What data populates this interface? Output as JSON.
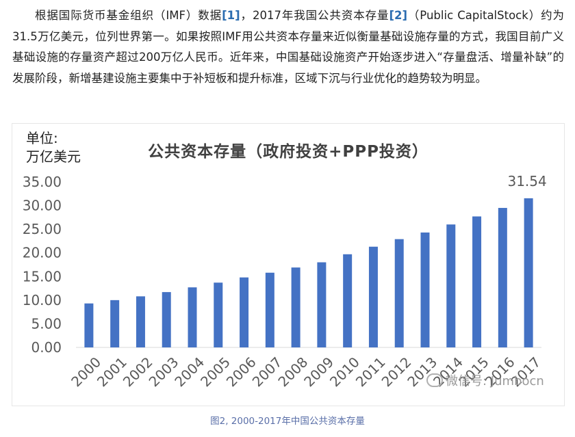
{
  "article": {
    "segments": [
      {
        "text": "根据国际货币基金组织（IMF）数据",
        "ref": false
      },
      {
        "text": "[1]",
        "ref": true
      },
      {
        "text": "，2017年我国公共资本存量",
        "ref": false
      },
      {
        "text": "[2]",
        "ref": true
      },
      {
        "text": "（Public CapitalStock）约为31.5万亿美元，位列世界第一。如果按照IMF用公共资本存量来近似衡量基础设施存量的方式，我国目前广义基础设施的存量资产超过200万亿人民币。近年来，中国基础设施资产开始逐步进入“存量盘活、增量补缺”的发展阶段，新增基建设施主要集中于补短板和提升标准，区域下沉与行业优化的趋势较为明显。",
        "ref": false
      }
    ]
  },
  "watermark": "微信号: Jumbocn",
  "caption": "图2,  2000-2017年中国公共资本存量",
  "colors": {
    "bar": "#4472c4",
    "axis_text": "#595959",
    "title": "#404040",
    "ref_link": "#2b6cb0"
  },
  "chart_data": {
    "type": "bar",
    "title": "公共资本存量（政府投资+PPP投资）",
    "unit_label": "单位:\n万亿美元",
    "categories": [
      "2000",
      "2001",
      "2002",
      "2003",
      "2004",
      "2005",
      "2006",
      "2007",
      "2008",
      "2009",
      "2010",
      "2011",
      "2012",
      "2013",
      "2014",
      "2015",
      "2016",
      "2017"
    ],
    "values": [
      9.3,
      10.0,
      10.8,
      11.7,
      12.7,
      13.7,
      14.8,
      15.8,
      16.9,
      18.0,
      19.7,
      21.3,
      22.9,
      24.3,
      26.0,
      27.7,
      29.5,
      31.54
    ],
    "data_labels": [
      {
        "index": 17,
        "text": "31.54"
      }
    ],
    "ylim": [
      0,
      35
    ],
    "yticks": [
      "0.00",
      "5.00",
      "10.00",
      "15.00",
      "20.00",
      "25.00",
      "30.00",
      "35.00"
    ],
    "grid": false,
    "xlabel": "",
    "ylabel": ""
  }
}
